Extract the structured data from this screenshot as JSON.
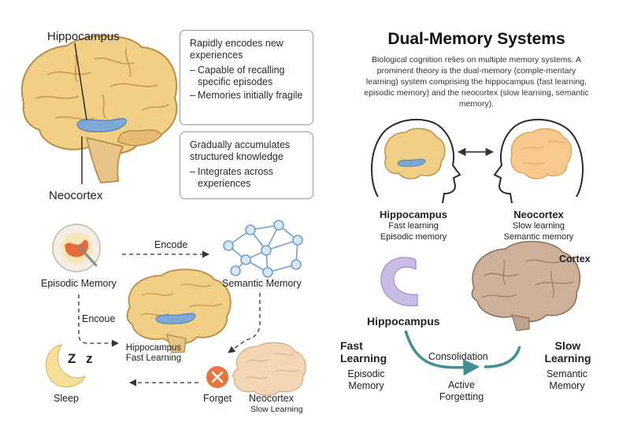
{
  "left": {
    "top_labels": {
      "hippocampus": "Hippocampus",
      "neocortex": "Neocortex"
    },
    "box1": {
      "text": "Rapidly encodes new experiences",
      "items": [
        "Capable of recalling specific episodes",
        "Memories initially fragile"
      ]
    },
    "box2": {
      "text": "Gradually accumulates structured knowledge",
      "items": [
        "Integrates across experiences"
      ]
    },
    "flow": {
      "episodic": "Episodic Memory",
      "encode_top": "Encode",
      "semantic": "Semantic Memory",
      "encode_left": "Encoue",
      "hippo_line1": "Hippocampus",
      "hippo_line2": "Fast Learning",
      "sleep": "Sleep",
      "forget": "Forget",
      "neo_line1": "Neocortex",
      "neo_line2": "Slow Learning",
      "zzz": "Z z"
    }
  },
  "right": {
    "title": "Dual-Memory Systems",
    "description": "Biological cognition relies on multiple memory systems. A prominent theory is the dual-memory (comple-mentary learning) system comprising the hippocampus (fast learning, episodic memory) and the neocortex (slow learning, semantic memory).",
    "heads": {
      "left": {
        "name": "Hippocampus",
        "line1": "Fast learning",
        "line2": "Episodic memory"
      },
      "right": {
        "name": "Neocortex",
        "line1": "Slow learning",
        "line2": "Semantic memory"
      }
    },
    "bottom": {
      "cortex": "Cortex",
      "hippocampus": "Hippocampus",
      "fast": "Fast Learning",
      "episodic": "Episodic Memory",
      "consolidation": "Consolidation",
      "active": "Active Forgetting",
      "slow": "Slow Learning",
      "semantic": "Semantic Memory"
    }
  },
  "colors": {
    "brain": "#f2cf86",
    "brain_dark": "#d9ad62",
    "hippocampus_blue": "#7fa8d4",
    "cortex_brain": "#cdb19b",
    "hippo_purple": "#c9bde6",
    "teal": "#3f8f93",
    "forget_orange": "#e8743b",
    "moon": "#f6df98"
  },
  "icons": [
    "brain-icon",
    "spaghetti-plate-icon",
    "neural-network-icon",
    "moon-icon",
    "forget-x-icon",
    "head-profile-icon",
    "double-arrow-icon"
  ]
}
